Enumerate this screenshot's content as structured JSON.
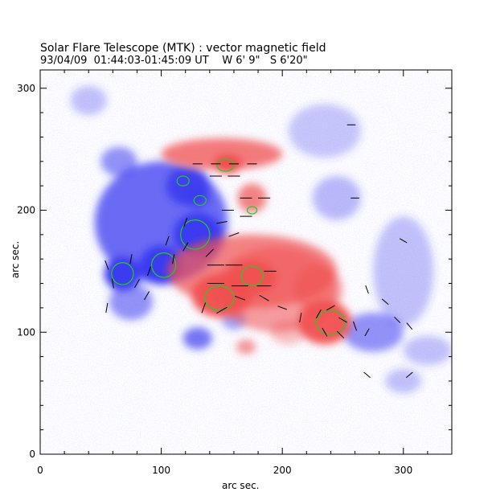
{
  "chart_data": {
    "type": "heatmap",
    "title": "Solar Flare Telescope (MTK) : vector magnetic field",
    "subtitle": "93/04/09  01:44:03-01:45:09 UT    W 6' 9\"   S 6'20\"",
    "xlabel": "arc sec.",
    "ylabel": "arc sec.",
    "xlim": [
      0,
      340
    ],
    "ylim": [
      0,
      315
    ],
    "xticks": [
      0,
      100,
      200,
      300
    ],
    "yticks": [
      0,
      100,
      200,
      300
    ],
    "grid": false,
    "colors": {
      "positive_polarity": "#f05050",
      "negative_polarity": "#3b3bf0",
      "contour": "#22cc22",
      "vector": "#000000"
    },
    "negative_regions": [
      {
        "x": 100,
        "y": 190,
        "rx": 55,
        "ry": 50,
        "strength": 0.75
      },
      {
        "x": 130,
        "y": 180,
        "rx": 20,
        "ry": 18,
        "strength": 1.0
      },
      {
        "x": 100,
        "y": 155,
        "rx": 18,
        "ry": 16,
        "strength": 1.0
      },
      {
        "x": 68,
        "y": 148,
        "rx": 15,
        "ry": 14,
        "strength": 1.0
      },
      {
        "x": 122,
        "y": 220,
        "rx": 18,
        "ry": 16,
        "strength": 0.9
      },
      {
        "x": 130,
        "y": 210,
        "rx": 10,
        "ry": 8,
        "strength": 0.8
      },
      {
        "x": 65,
        "y": 240,
        "rx": 15,
        "ry": 12,
        "strength": 0.55
      },
      {
        "x": 75,
        "y": 125,
        "rx": 18,
        "ry": 15,
        "strength": 0.55
      },
      {
        "x": 130,
        "y": 95,
        "rx": 12,
        "ry": 9,
        "strength": 0.7
      },
      {
        "x": 160,
        "y": 110,
        "rx": 10,
        "ry": 8,
        "strength": 0.45
      },
      {
        "x": 275,
        "y": 100,
        "rx": 25,
        "ry": 16,
        "strength": 0.55
      },
      {
        "x": 245,
        "y": 210,
        "rx": 20,
        "ry": 18,
        "strength": 0.35
      },
      {
        "x": 300,
        "y": 150,
        "rx": 25,
        "ry": 45,
        "strength": 0.3
      },
      {
        "x": 320,
        "y": 85,
        "rx": 20,
        "ry": 12,
        "strength": 0.3
      },
      {
        "x": 40,
        "y": 290,
        "rx": 15,
        "ry": 12,
        "strength": 0.3
      },
      {
        "x": 235,
        "y": 265,
        "rx": 30,
        "ry": 22,
        "strength": 0.28
      },
      {
        "x": 300,
        "y": 60,
        "rx": 15,
        "ry": 10,
        "strength": 0.3
      }
    ],
    "positive_regions": [
      {
        "x": 175,
        "y": 150,
        "rx": 70,
        "ry": 30,
        "strength": 0.7
      },
      {
        "x": 195,
        "y": 135,
        "rx": 50,
        "ry": 35,
        "strength": 0.55
      },
      {
        "x": 150,
        "y": 130,
        "rx": 25,
        "ry": 18,
        "strength": 0.95
      },
      {
        "x": 235,
        "y": 108,
        "rx": 22,
        "ry": 18,
        "strength": 0.95
      },
      {
        "x": 150,
        "y": 246,
        "rx": 50,
        "ry": 13,
        "strength": 0.75
      },
      {
        "x": 155,
        "y": 238,
        "rx": 12,
        "ry": 8,
        "strength": 1.0
      },
      {
        "x": 175,
        "y": 145,
        "rx": 20,
        "ry": 14,
        "strength": 0.9
      },
      {
        "x": 175,
        "y": 210,
        "rx": 12,
        "ry": 12,
        "strength": 0.7
      },
      {
        "x": 230,
        "y": 135,
        "rx": 20,
        "ry": 20,
        "strength": 0.5
      },
      {
        "x": 205,
        "y": 100,
        "rx": 15,
        "ry": 10,
        "strength": 0.35
      },
      {
        "x": 170,
        "y": 88,
        "rx": 8,
        "ry": 6,
        "strength": 0.6
      }
    ],
    "contours": [
      {
        "x": 68,
        "y": 148,
        "rx": 9,
        "ry": 9
      },
      {
        "x": 102,
        "y": 155,
        "rx": 10,
        "ry": 10
      },
      {
        "x": 128,
        "y": 180,
        "rx": 12,
        "ry": 12
      },
      {
        "x": 118,
        "y": 224,
        "rx": 5,
        "ry": 4
      },
      {
        "x": 132,
        "y": 208,
        "rx": 5,
        "ry": 4
      },
      {
        "x": 153,
        "y": 237,
        "rx": 7,
        "ry": 5
      },
      {
        "x": 148,
        "y": 128,
        "rx": 12,
        "ry": 10
      },
      {
        "x": 175,
        "y": 146,
        "rx": 9,
        "ry": 8
      },
      {
        "x": 240,
        "y": 108,
        "rx": 12,
        "ry": 10
      },
      {
        "x": 175,
        "y": 200,
        "rx": 4,
        "ry": 3
      }
    ],
    "vectors": [
      {
        "x": 130,
        "y": 238,
        "angle": 0,
        "len": 8
      },
      {
        "x": 145,
        "y": 238,
        "angle": 0,
        "len": 8
      },
      {
        "x": 160,
        "y": 238,
        "angle": 0,
        "len": 8
      },
      {
        "x": 175,
        "y": 238,
        "angle": 0,
        "len": 8
      },
      {
        "x": 145,
        "y": 228,
        "angle": 0,
        "len": 10
      },
      {
        "x": 160,
        "y": 228,
        "angle": 0,
        "len": 10
      },
      {
        "x": 170,
        "y": 210,
        "angle": 0,
        "len": 10
      },
      {
        "x": 185,
        "y": 210,
        "angle": 0,
        "len": 10
      },
      {
        "x": 155,
        "y": 200,
        "angle": 0,
        "len": 10
      },
      {
        "x": 170,
        "y": 195,
        "angle": 0,
        "len": 10
      },
      {
        "x": 150,
        "y": 190,
        "angle": 10,
        "len": 9
      },
      {
        "x": 160,
        "y": 180,
        "angle": 20,
        "len": 9
      },
      {
        "x": 140,
        "y": 165,
        "angle": 45,
        "len": 9
      },
      {
        "x": 120,
        "y": 170,
        "angle": 60,
        "len": 8
      },
      {
        "x": 110,
        "y": 160,
        "angle": 80,
        "len": 8
      },
      {
        "x": 90,
        "y": 150,
        "angle": 70,
        "len": 8
      },
      {
        "x": 80,
        "y": 140,
        "angle": 60,
        "len": 8
      },
      {
        "x": 60,
        "y": 140,
        "angle": 100,
        "len": 8
      },
      {
        "x": 55,
        "y": 155,
        "angle": 110,
        "len": 8
      },
      {
        "x": 75,
        "y": 160,
        "angle": 80,
        "len": 8
      },
      {
        "x": 88,
        "y": 130,
        "angle": 60,
        "len": 8
      },
      {
        "x": 55,
        "y": 120,
        "angle": 80,
        "len": 8
      },
      {
        "x": 145,
        "y": 155,
        "angle": 0,
        "len": 14
      },
      {
        "x": 160,
        "y": 155,
        "angle": 0,
        "len": 14
      },
      {
        "x": 145,
        "y": 140,
        "angle": 0,
        "len": 14
      },
      {
        "x": 165,
        "y": 138,
        "angle": 0,
        "len": 14
      },
      {
        "x": 185,
        "y": 138,
        "angle": 0,
        "len": 12
      },
      {
        "x": 150,
        "y": 118,
        "angle": 30,
        "len": 10
      },
      {
        "x": 135,
        "y": 120,
        "angle": 70,
        "len": 9
      },
      {
        "x": 165,
        "y": 128,
        "angle": -20,
        "len": 9
      },
      {
        "x": 185,
        "y": 128,
        "angle": -30,
        "len": 9
      },
      {
        "x": 215,
        "y": 112,
        "angle": 80,
        "len": 8
      },
      {
        "x": 230,
        "y": 115,
        "angle": 60,
        "len": 8
      },
      {
        "x": 240,
        "y": 120,
        "angle": 30,
        "len": 8
      },
      {
        "x": 250,
        "y": 110,
        "angle": -30,
        "len": 8
      },
      {
        "x": 235,
        "y": 100,
        "angle": -60,
        "len": 8
      },
      {
        "x": 248,
        "y": 98,
        "angle": -45,
        "len": 8
      },
      {
        "x": 260,
        "y": 105,
        "angle": -70,
        "len": 8
      },
      {
        "x": 270,
        "y": 100,
        "angle": 60,
        "len": 7
      },
      {
        "x": 285,
        "y": 125,
        "angle": -40,
        "len": 7
      },
      {
        "x": 295,
        "y": 110,
        "angle": -45,
        "len": 7
      },
      {
        "x": 305,
        "y": 105,
        "angle": -50,
        "len": 7
      },
      {
        "x": 270,
        "y": 135,
        "angle": -70,
        "len": 7
      },
      {
        "x": 300,
        "y": 175,
        "angle": -30,
        "len": 7
      },
      {
        "x": 260,
        "y": 210,
        "angle": 0,
        "len": 7
      },
      {
        "x": 270,
        "y": 65,
        "angle": -40,
        "len": 7
      },
      {
        "x": 305,
        "y": 65,
        "angle": 40,
        "len": 7
      },
      {
        "x": 257,
        "y": 270,
        "angle": 0,
        "len": 7
      },
      {
        "x": 120,
        "y": 190,
        "angle": 70,
        "len": 8
      },
      {
        "x": 105,
        "y": 175,
        "angle": 70,
        "len": 8
      },
      {
        "x": 200,
        "y": 120,
        "angle": -20,
        "len": 8
      },
      {
        "x": 190,
        "y": 150,
        "angle": 0,
        "len": 10
      }
    ]
  }
}
